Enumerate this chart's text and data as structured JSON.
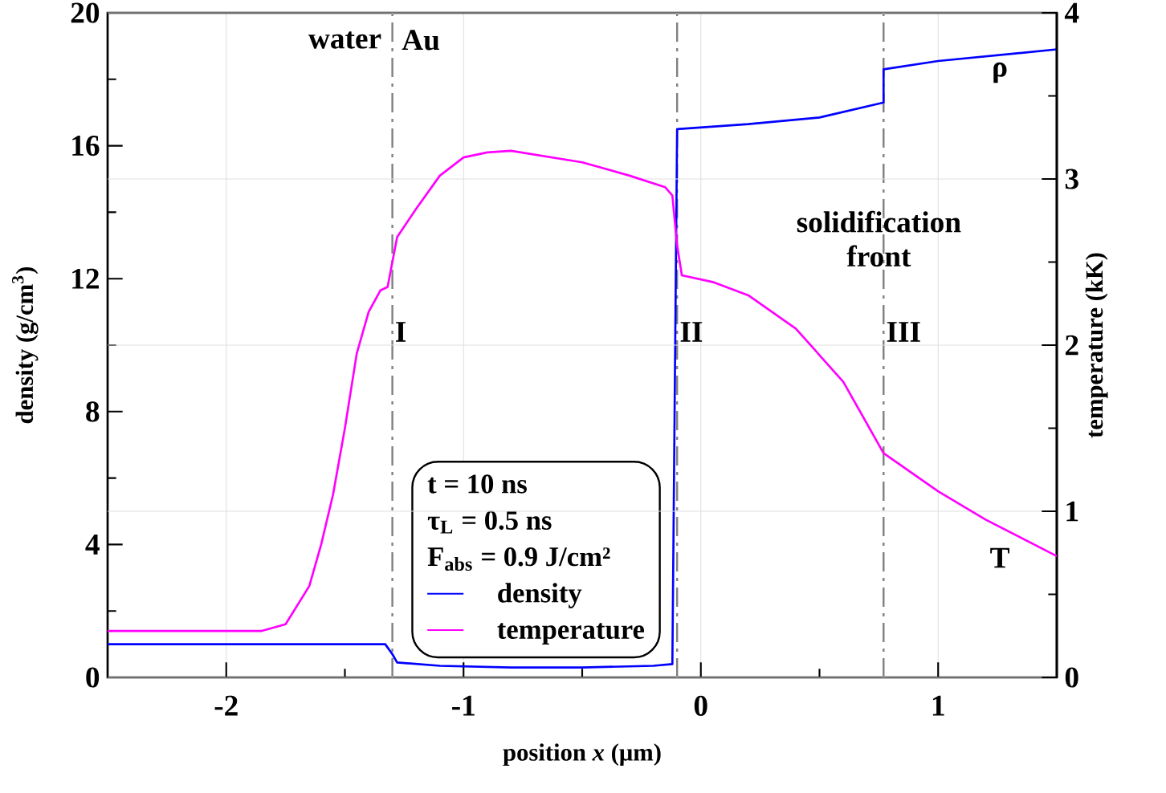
{
  "chart_data": {
    "type": "line",
    "xlabel": "position *x* (μm)",
    "ylabel": "density (g/cm$^{3}$)",
    "y2label": "temperature (kK)",
    "xlim": [
      -2.5,
      1.5
    ],
    "xticks": [
      -2,
      -1,
      0,
      1
    ],
    "ylim": [
      0,
      20
    ],
    "yticks": [
      0,
      4,
      8,
      12,
      16,
      20
    ],
    "y2lim": [
      0,
      4
    ],
    "y2ticks": [
      0,
      1,
      2,
      3,
      4
    ],
    "grid": true,
    "legend": "bottom",
    "series": [
      {
        "name": "density",
        "color": "#0000ff",
        "x": [
          -2.5,
          -1.33,
          -1.3,
          -1.28,
          -1.1,
          -0.8,
          -0.5,
          -0.2,
          -0.12,
          -0.1,
          0.0,
          0.2,
          0.5,
          0.77,
          0.77,
          1.0,
          1.5
        ],
        "values": [
          1.0,
          1.0,
          0.7,
          0.45,
          0.35,
          0.3,
          0.3,
          0.35,
          0.4,
          16.5,
          16.55,
          16.65,
          16.85,
          17.3,
          18.3,
          18.55,
          18.9
        ]
      },
      {
        "name": "temperature",
        "color": "#ff00ff",
        "axis": "y2",
        "x": [
          -2.5,
          -1.85,
          -1.75,
          -1.65,
          -1.6,
          -1.55,
          -1.5,
          -1.45,
          -1.4,
          -1.35,
          -1.32,
          -1.28,
          -1.2,
          -1.1,
          -1.0,
          -0.9,
          -0.8,
          -0.5,
          -0.3,
          -0.15,
          -0.12,
          -0.1,
          -0.08,
          0.05,
          0.2,
          0.4,
          0.6,
          0.77,
          1.0,
          1.2,
          1.5
        ],
        "values": [
          0.28,
          0.28,
          0.32,
          0.55,
          0.8,
          1.1,
          1.5,
          1.95,
          2.2,
          2.33,
          2.35,
          2.65,
          2.82,
          3.02,
          3.13,
          3.16,
          3.17,
          3.1,
          3.02,
          2.95,
          2.9,
          2.6,
          2.42,
          2.38,
          2.3,
          2.1,
          1.78,
          1.35,
          1.12,
          0.95,
          0.73
        ]
      }
    ],
    "ref_lines": [
      {
        "axis": "x",
        "value": -1.3,
        "label": "I",
        "color": "#808080",
        "line_style": "dashed"
      },
      {
        "axis": "x",
        "value": -0.1,
        "label": "II",
        "color": "#808080",
        "line_style": "dashed"
      },
      {
        "axis": "x",
        "value": 0.77,
        "label": "III",
        "color": "#808080",
        "line_style": "dashed"
      }
    ],
    "annotations": [
      {
        "text": "solidification front",
        "x": 0.75,
        "y": 13.2
      },
      "water",
      "Au",
      "ρ",
      "T",
      "t = 10 ns",
      "τ$_{L}$ = 0.5 ns",
      "F$_{abs}$ = 0.9 J/cm²"
    ]
  }
}
